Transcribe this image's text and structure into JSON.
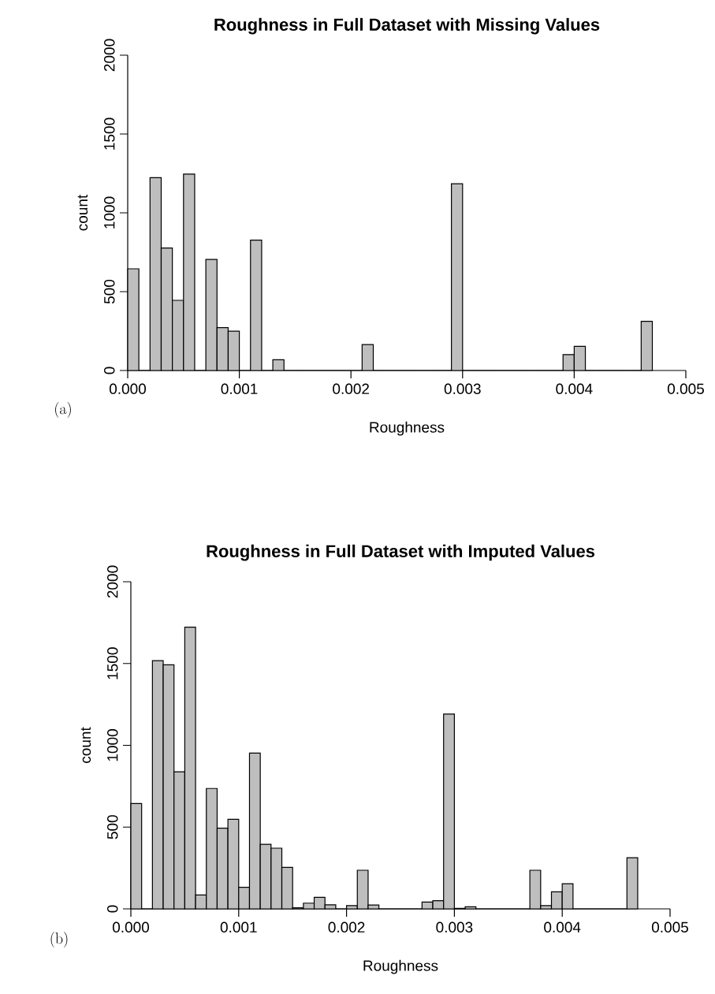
{
  "chart_data": [
    {
      "type": "histogram",
      "title": "Roughness in Full Dataset with Missing Values",
      "xlabel": "Roughness",
      "ylabel": "count",
      "annotations": [
        "(a)"
      ],
      "color": "#bebebe",
      "bins": [
        0,
        0.0001,
        0.0002,
        0.0003,
        0.0004,
        0.0005,
        0.0006,
        0.0007,
        0.0008,
        0.0009,
        0.001,
        0.0011,
        0.0012,
        0.0013,
        0.0014,
        0.0015,
        0.0016,
        0.0017,
        0.0018,
        0.0019,
        0.002,
        0.0021,
        0.0022,
        0.0023,
        0.0024,
        0.0025,
        0.0026,
        0.0027,
        0.0028,
        0.0029,
        0.003,
        0.0031,
        0.0032,
        0.0033,
        0.0034,
        0.0035,
        0.0036,
        0.0037,
        0.0038,
        0.0039,
        0.004,
        0.0041,
        0.0042,
        0.0043,
        0.0044,
        0.0045,
        0.0046,
        0.0047
      ],
      "values": [
        645,
        0,
        1223,
        777,
        445,
        1246,
        0,
        704,
        272,
        249,
        0,
        827,
        0,
        68,
        0,
        0,
        0,
        0,
        0,
        0,
        0,
        164,
        0,
        0,
        0,
        0,
        0,
        0,
        0,
        1184,
        0,
        0,
        0,
        0,
        0,
        0,
        0,
        0,
        0,
        101,
        153,
        0,
        0,
        0,
        0,
        0,
        312
      ],
      "xlim": [
        0,
        0.005
      ],
      "xticks": [
        {
          "value": 0,
          "label": "0.000"
        },
        {
          "value": 0.001,
          "label": "0.001"
        },
        {
          "value": 0.002,
          "label": "0.002"
        },
        {
          "value": 0.003,
          "label": "0.003"
        },
        {
          "value": 0.004,
          "label": "0.004"
        },
        {
          "value": 0.005,
          "label": "0.005"
        }
      ],
      "ylim": [
        0,
        2000
      ],
      "yticks": [
        0,
        500,
        1000,
        1500,
        2000
      ]
    },
    {
      "type": "histogram",
      "title": "Roughness in Full Dataset with Imputed Values",
      "xlabel": "Roughness",
      "ylabel": "count",
      "annotations": [
        "(b)"
      ],
      "color": "#bebebe",
      "bins": [
        0,
        0.0001,
        0.0002,
        0.0003,
        0.0004,
        0.0005,
        0.0006,
        0.0007,
        0.0008,
        0.0009,
        0.001,
        0.0011,
        0.0012,
        0.0013,
        0.0014,
        0.0015,
        0.0016,
        0.0017,
        0.0018,
        0.0019,
        0.002,
        0.0021,
        0.0022,
        0.0023,
        0.0024,
        0.0025,
        0.0026,
        0.0027,
        0.0028,
        0.0029,
        0.003,
        0.0031,
        0.0032,
        0.0033,
        0.0034,
        0.0035,
        0.0036,
        0.0037,
        0.0038,
        0.0039,
        0.004,
        0.0041,
        0.0042,
        0.0043,
        0.0044,
        0.0045,
        0.0046,
        0.0047
      ],
      "values": [
        644,
        0,
        1517,
        1492,
        838,
        1722,
        85,
        736,
        493,
        548,
        132,
        952,
        395,
        371,
        254,
        7,
        35,
        70,
        25,
        0,
        20,
        236,
        23,
        0,
        0,
        0,
        0,
        42,
        50,
        1191,
        3,
        13,
        0,
        0,
        0,
        0,
        0,
        236,
        20,
        104,
        154,
        0,
        0,
        0,
        0,
        0,
        313
      ],
      "xlim": [
        0,
        0.005
      ],
      "xticks": [
        {
          "value": 0,
          "label": "0.000"
        },
        {
          "value": 0.001,
          "label": "0.001"
        },
        {
          "value": 0.002,
          "label": "0.002"
        },
        {
          "value": 0.003,
          "label": "0.003"
        },
        {
          "value": 0.004,
          "label": "0.004"
        },
        {
          "value": 0.005,
          "label": "0.005"
        }
      ],
      "ylim": [
        0,
        2000
      ],
      "yticks": [
        0,
        500,
        1000,
        1500,
        2000
      ]
    }
  ]
}
